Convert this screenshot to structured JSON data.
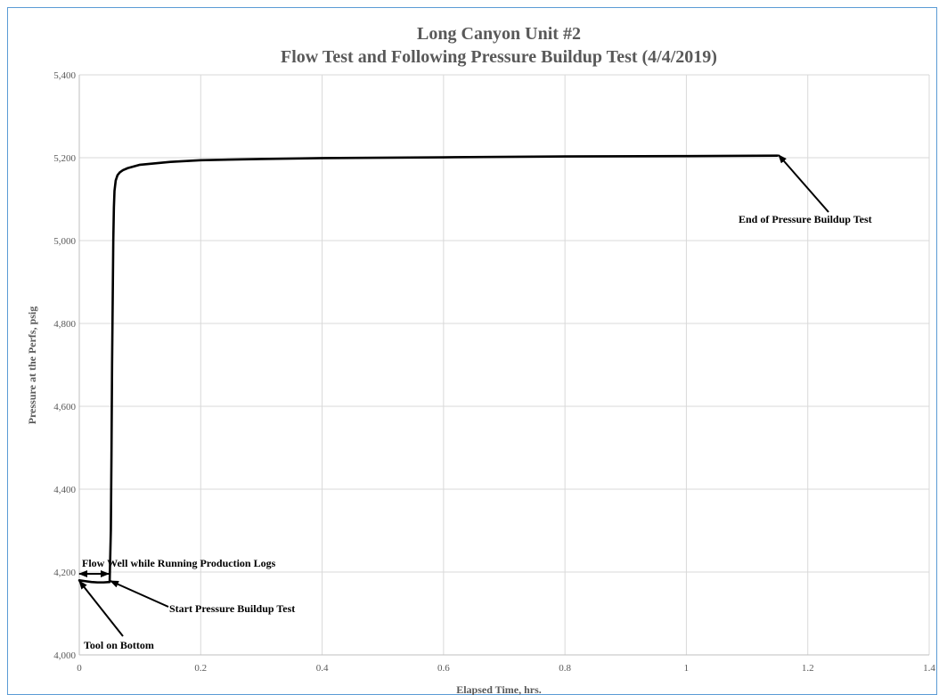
{
  "chart_data": {
    "type": "line",
    "title": "Long Canyon Unit #2",
    "subtitle": "Flow Test and Following Pressure Buildup Test (4/4/2019)",
    "xlabel": "Elapsed Time, hrs.",
    "ylabel": "Pressure at the Perfs, psig",
    "xlim": [
      0,
      1.4
    ],
    "ylim": [
      4000,
      5400
    ],
    "x_ticks": [
      0,
      0.2,
      0.4,
      0.6,
      0.8,
      1,
      1.2,
      1.4
    ],
    "x_tick_labels": [
      "0",
      "0.2",
      "0.4",
      "0.6",
      "0.8",
      "1",
      "1.2",
      "1.4"
    ],
    "y_ticks": [
      4000,
      4200,
      4400,
      4600,
      4800,
      5000,
      5200,
      5400
    ],
    "y_tick_labels": [
      "4,000",
      "4,200",
      "4,400",
      "4,600",
      "4,800",
      "5,000",
      "5,200",
      "5,400"
    ],
    "grid": true,
    "legend": "none",
    "line_color": "#000000",
    "series": [
      {
        "x": [
          0,
          0.01,
          0.02,
          0.03,
          0.04,
          0.05,
          0.052,
          0.053,
          0.054,
          0.055,
          0.056,
          0.057,
          0.058,
          0.06,
          0.063,
          0.067,
          0.072,
          0.08,
          0.1,
          0.15,
          0.2,
          0.3,
          0.4,
          0.6,
          0.8,
          1.0,
          1.15
        ],
        "y": [
          4180,
          4178,
          4176,
          4175,
          4175,
          4176,
          4300,
          4480,
          4700,
          4850,
          5000,
          5080,
          5120,
          5145,
          5158,
          5165,
          5170,
          5175,
          5183,
          5190,
          5194,
          5197,
          5199,
          5201,
          5203,
          5204,
          5205
        ]
      }
    ],
    "annotations": [
      {
        "text": "Flow Well while Running Production Logs",
        "x": 0.01,
        "y": 4225
      },
      {
        "text": "Start Pressure Buildup Test",
        "x": 0.15,
        "y": 4105
      },
      {
        "text": "Tool on Bottom",
        "x": 0.01,
        "y": 4025
      },
      {
        "text": "End of Pressure Buildup Test",
        "x": 1.08,
        "y": 5050
      }
    ]
  }
}
